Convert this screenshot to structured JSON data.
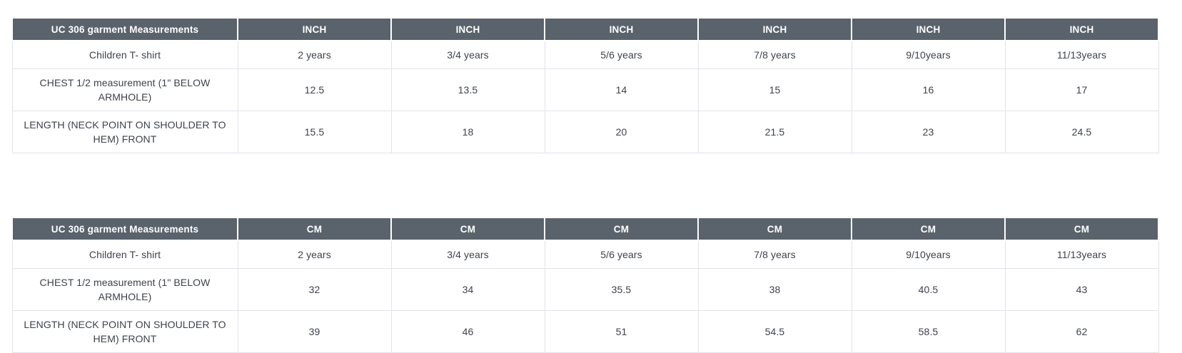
{
  "theme": {
    "header_bg": "#5a626c",
    "header_text": "#ffffff",
    "body_text": "#3d424a",
    "border_color": "#e2e2ec",
    "page_bg": "#ffffff"
  },
  "tables": [
    {
      "title": "UC 306 garment Measurements",
      "unit": "INCH",
      "subtitle": "Children T- shirt",
      "sizes": [
        "2 years",
        "3/4 years",
        "5/6 years",
        "7/8 years",
        "9/10years",
        "11/13years"
      ],
      "rows": [
        {
          "label": "CHEST 1/2 measurement (1\" BELOW ARMHOLE)",
          "values": [
            "12.5",
            "13.5",
            "14",
            "15",
            "16",
            "17"
          ]
        },
        {
          "label": "LENGTH (NECK POINT ON SHOULDER TO HEM) FRONT",
          "values": [
            "15.5",
            "18",
            "20",
            "21.5",
            "23",
            "24.5"
          ]
        }
      ]
    },
    {
      "title": "UC 306 garment Measurements",
      "unit": "CM",
      "subtitle": "Children T- shirt",
      "sizes": [
        "2 years",
        "3/4 years",
        "5/6 years",
        "7/8 years",
        "9/10years",
        "11/13years"
      ],
      "rows": [
        {
          "label": "CHEST 1/2 measurement (1\" BELOW ARMHOLE)",
          "values": [
            "32",
            "34",
            "35.5",
            "38",
            "40.5",
            "43"
          ]
        },
        {
          "label": "LENGTH (NECK POINT ON SHOULDER TO HEM) FRONT",
          "values": [
            "39",
            "46",
            "51",
            "54.5",
            "58.5",
            "62"
          ]
        }
      ]
    }
  ]
}
